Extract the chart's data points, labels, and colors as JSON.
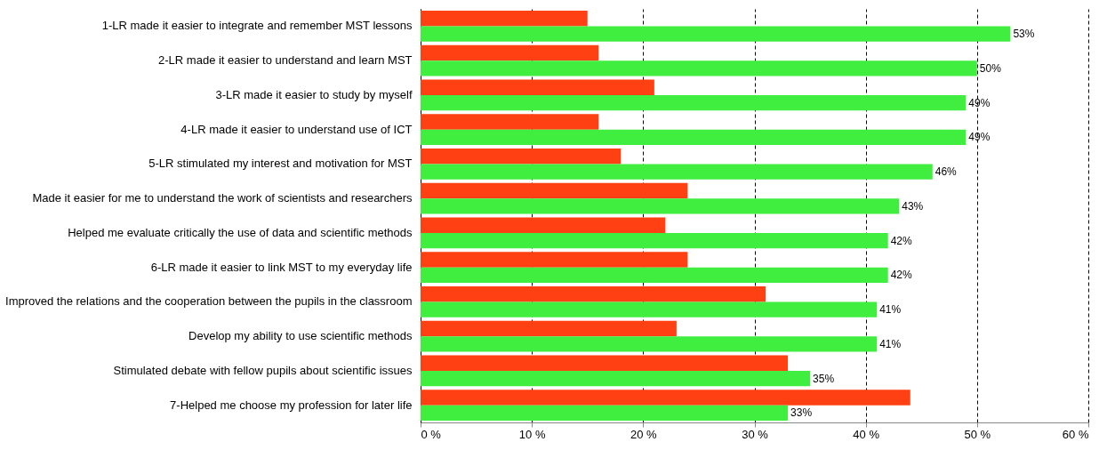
{
  "chart_data": {
    "type": "bar",
    "orientation": "horizontal",
    "categories": [
      "1-LR made it easier to integrate and remember MST lessons",
      "2-LR made it easier to understand and learn MST",
      "3-LR made it easier to study by myself",
      "4-LR made it easier to understand use of ICT",
      "5-LR stimulated my interest and motivation for MST",
      "Made it easier for me to understand the work of scientists and researchers",
      "Helped me evaluate critically the use of data and scientific methods",
      "6-LR made it easier to link MST to my everyday life",
      "Improved the relations and the cooperation between the pupils in the classroom",
      "Develop my ability to use scientific methods",
      "Stimulated debate with fellow pupils about scientific issues",
      "7-Helped me choose my profession for later life"
    ],
    "series": [
      {
        "color": "#ff4013",
        "values": [
          15,
          16,
          21,
          16,
          18,
          24,
          22,
          24,
          31,
          23,
          33,
          44
        ]
      },
      {
        "color": "#40ee40",
        "values": [
          53,
          50,
          49,
          49,
          46,
          43,
          42,
          42,
          41,
          41,
          35,
          33
        ],
        "value_labels": [
          "53%",
          "50%",
          "49%",
          "49%",
          "46%",
          "43%",
          "42%",
          "42%",
          "41%",
          "41%",
          "35%",
          "33%"
        ]
      }
    ],
    "xlim": [
      0,
      60
    ],
    "xticks": [
      {
        "value": 0,
        "label": "0 %"
      },
      {
        "value": 10,
        "label": "10 %"
      },
      {
        "value": 20,
        "label": "20 %"
      },
      {
        "value": 30,
        "label": "30 %"
      },
      {
        "value": 40,
        "label": "40 %"
      },
      {
        "value": 50,
        "label": "50 %"
      },
      {
        "value": 60,
        "label": "60 %"
      }
    ],
    "grid": "x"
  }
}
